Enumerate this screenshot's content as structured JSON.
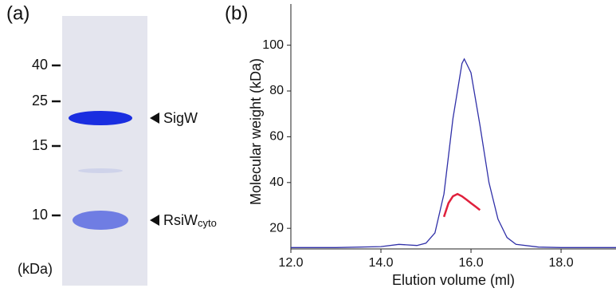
{
  "panel_a": {
    "label": "(a)",
    "unit": "(kDa)",
    "markers": [
      "40",
      "25",
      "15",
      "10"
    ],
    "bands": [
      {
        "label": "SigW"
      },
      {
        "label": "RsiW",
        "subscript": "cyto"
      }
    ]
  },
  "chart_data": {
    "type": "line",
    "label": "(b)",
    "x_label": "Elution volume (ml)",
    "y_label": "Molecular weight (kDa)",
    "xlim": [
      12,
      19.22
    ],
    "xticks": [
      {
        "value": 12,
        "label": "12.0"
      },
      {
        "value": 14,
        "label": "14.0"
      },
      {
        "value": 16,
        "label": "16.0"
      },
      {
        "value": 18,
        "label": "18.0"
      }
    ],
    "ylim": [
      11,
      118
    ],
    "yticks": [
      20,
      40,
      60,
      80,
      100
    ],
    "series": [
      {
        "color": "#3030a8",
        "x": [
          12,
          13,
          14,
          14.4,
          14.8,
          15,
          15.2,
          15.4,
          15.6,
          15.8,
          15.85,
          16,
          16.2,
          16.4,
          16.6,
          16.8,
          17,
          17.5,
          18,
          19.22
        ],
        "values": [
          11.6,
          11.6,
          12,
          13,
          12.5,
          13.5,
          18,
          35,
          68,
          92,
          94,
          88,
          65,
          40,
          24,
          16,
          13,
          11.8,
          11.6,
          11.6
        ]
      },
      {
        "color": "#e0203c",
        "x": [
          15.4,
          15.5,
          15.6,
          15.7,
          15.8,
          15.9,
          16,
          16.1,
          16.2
        ],
        "values": [
          25,
          31,
          34,
          35,
          34,
          32.5,
          31,
          29.5,
          28
        ]
      }
    ]
  }
}
